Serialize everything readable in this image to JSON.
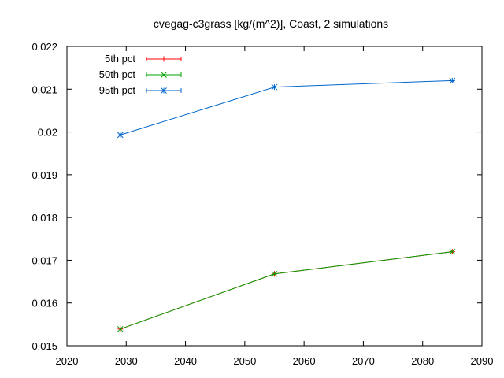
{
  "chart_data": {
    "type": "line",
    "title": "cvegag-c3grass [kg/(m^2)], Coast, 2 simulations",
    "xlabel": "",
    "ylabel": "",
    "xlim": [
      2020,
      2090
    ],
    "ylim": [
      0.015,
      0.022
    ],
    "xticks": [
      2020,
      2030,
      2040,
      2050,
      2060,
      2070,
      2080,
      2090
    ],
    "yticks": [
      0.015,
      0.016,
      0.017,
      0.018,
      0.019,
      0.02,
      0.021,
      0.022
    ],
    "ytick_labels": [
      "0.015",
      "0.016",
      "0.017",
      "0.018",
      "0.019",
      "0.02",
      "0.021",
      "0.022"
    ],
    "x": [
      2029,
      2055,
      2085
    ],
    "legend_position": "top-left",
    "grid": false,
    "series": [
      {
        "name": "5th pct",
        "color": "#ff0000",
        "marker": "plus",
        "values": [
          0.01539,
          0.01668,
          0.0172
        ]
      },
      {
        "name": "50th pct",
        "color": "#00a000",
        "marker": "cross",
        "values": [
          0.01539,
          0.01668,
          0.0172
        ]
      },
      {
        "name": "95th pct",
        "color": "#0066cc",
        "marker": "star",
        "values": [
          0.01993,
          0.02105,
          0.0212
        ]
      }
    ]
  }
}
